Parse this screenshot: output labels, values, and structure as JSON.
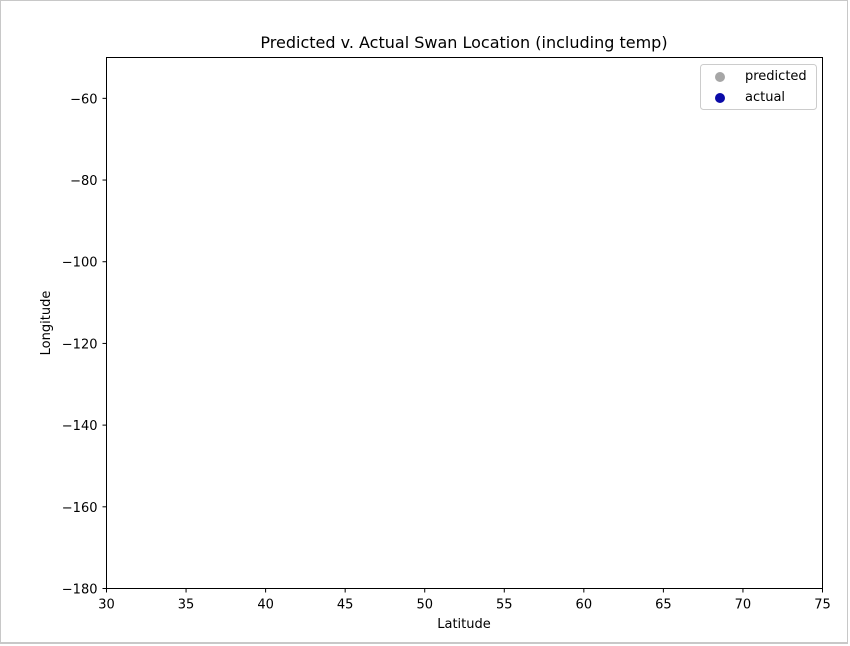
{
  "chart_data": {
    "type": "scatter",
    "title": "Predicted v. Actual Swan Location (including temp)",
    "xlabel": "Latitude",
    "ylabel": "Longitude",
    "xlim": [
      30,
      75
    ],
    "ylim": [
      -180,
      -50
    ],
    "xticks": [
      30,
      35,
      40,
      45,
      50,
      55,
      60,
      65,
      70,
      75
    ],
    "yticks": [
      -180,
      -160,
      -140,
      -120,
      -100,
      -80,
      -60
    ],
    "grid": false,
    "legend_position": "top-right",
    "series": [
      {
        "name": "predicted",
        "color": "#a6a6a6",
        "points": []
      },
      {
        "name": "actual",
        "color": "#0a0aa8",
        "points": []
      }
    ]
  }
}
